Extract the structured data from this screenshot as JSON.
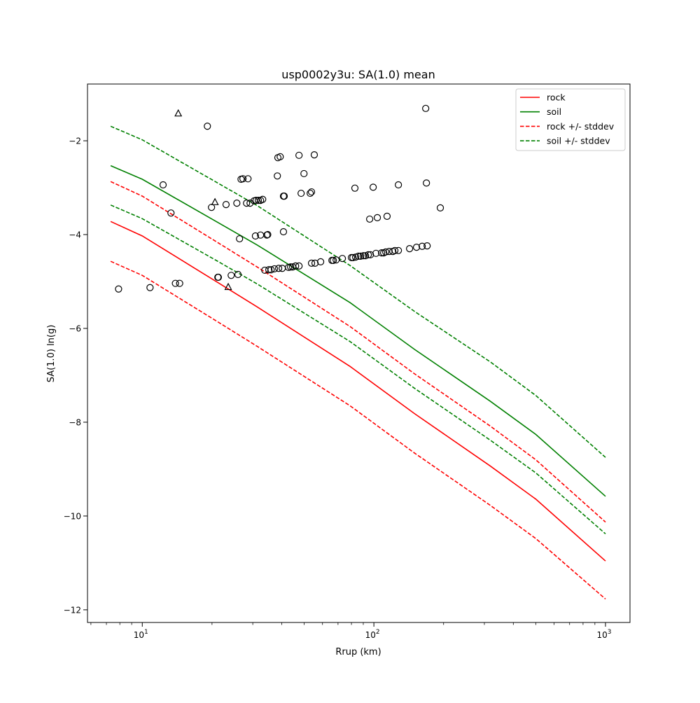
{
  "chart_data": {
    "type": "line",
    "title": "usp0002y3u: SA(1.0) mean",
    "xlabel": "Rrup (km)",
    "ylabel": "SA(1.0) ln(g)",
    "xscale": "log",
    "xlim": [
      5.8,
      1276
    ],
    "ylim": [
      -12.27,
      -0.79
    ],
    "grid": false,
    "legend_placement": "top-right",
    "xticks": [
      {
        "value": 10,
        "base": "10",
        "exp": "1"
      },
      {
        "value": 100,
        "base": "10",
        "exp": "2"
      },
      {
        "value": 1000,
        "base": "10",
        "exp": "3"
      }
    ],
    "yticks": [
      {
        "value": -2,
        "label": "−2"
      },
      {
        "value": -4,
        "label": "−4"
      },
      {
        "value": -6,
        "label": "−6"
      },
      {
        "value": -8,
        "label": "−8"
      },
      {
        "value": -10,
        "label": "−10"
      },
      {
        "value": -12,
        "label": "−12"
      }
    ],
    "x": [
      7.3,
      10,
      21,
      31.3,
      78.9,
      150,
      317.5,
      500,
      1000
    ],
    "series": [
      {
        "name": "rock",
        "color": "#ff0000",
        "style": "solid",
        "values": [
          -3.72,
          -4.03,
          -5.01,
          -5.54,
          -6.81,
          -7.82,
          -8.93,
          -9.64,
          -10.96
        ]
      },
      {
        "name": "soil",
        "color": "#008000",
        "style": "solid",
        "values": [
          -2.53,
          -2.82,
          -3.73,
          -4.22,
          -5.45,
          -6.45,
          -7.55,
          -8.26,
          -9.58
        ]
      },
      {
        "name": "rock +/- stddev",
        "color": "#ff0000",
        "style": "dashed",
        "values": [
          -2.87,
          -3.18,
          -4.16,
          -4.69,
          -5.96,
          -6.97,
          -8.08,
          -8.8,
          -10.13
        ],
        "values_lower": [
          -4.57,
          -4.87,
          -5.85,
          -6.38,
          -7.65,
          -8.66,
          -9.77,
          -10.48,
          -11.77
        ]
      },
      {
        "name": "soil +/- stddev",
        "color": "#008000",
        "style": "dashed",
        "values": [
          -1.69,
          -1.98,
          -2.89,
          -3.38,
          -4.66,
          -5.64,
          -6.71,
          -7.43,
          -8.75
        ],
        "values_lower": [
          -3.37,
          -3.66,
          -4.56,
          -5.05,
          -6.28,
          -7.28,
          -8.38,
          -9.08,
          -10.38
        ]
      }
    ],
    "observations_circle": [
      [
        7.9,
        -5.16
      ],
      [
        10.8,
        -5.13
      ],
      [
        12.3,
        -2.94
      ],
      [
        13.3,
        -3.54
      ],
      [
        13.9,
        -5.04
      ],
      [
        14.5,
        -5.04
      ],
      [
        19.1,
        -1.69
      ],
      [
        19.9,
        -3.42
      ],
      [
        21.2,
        -4.91
      ],
      [
        21.3,
        -4.91
      ],
      [
        23.0,
        -3.36
      ],
      [
        24.2,
        -4.87
      ],
      [
        25.6,
        -3.33
      ],
      [
        26.3,
        -4.09
      ],
      [
        25.9,
        -4.85
      ],
      [
        26.7,
        -2.82
      ],
      [
        27.2,
        -2.81
      ],
      [
        28.6,
        -2.81
      ],
      [
        28.2,
        -3.33
      ],
      [
        29.2,
        -3.33
      ],
      [
        30.4,
        -3.28
      ],
      [
        31.0,
        -3.27
      ],
      [
        31.7,
        -3.27
      ],
      [
        32.4,
        -3.27
      ],
      [
        33.1,
        -3.25
      ],
      [
        30.8,
        -4.03
      ],
      [
        32.4,
        -4.01
      ],
      [
        34.5,
        -4.01
      ],
      [
        34.8,
        -4.0
      ],
      [
        33.8,
        -4.76
      ],
      [
        35.2,
        -4.75
      ],
      [
        36.0,
        -4.75
      ],
      [
        37.2,
        -4.73
      ],
      [
        38.8,
        -4.72
      ],
      [
        40.2,
        -4.72
      ],
      [
        40.7,
        -3.94
      ],
      [
        38.5,
        -2.36
      ],
      [
        39.4,
        -2.34
      ],
      [
        38.3,
        -2.75
      ],
      [
        40.7,
        -3.18
      ],
      [
        41.0,
        -3.18
      ],
      [
        42.8,
        -4.7
      ],
      [
        43.7,
        -4.69
      ],
      [
        44.6,
        -4.69
      ],
      [
        45.9,
        -4.67
      ],
      [
        47.5,
        -4.67
      ],
      [
        48.5,
        -3.12
      ],
      [
        47.5,
        -2.31
      ],
      [
        49.9,
        -2.7
      ],
      [
        53.1,
        -3.12
      ],
      [
        53.8,
        -3.09
      ],
      [
        55.3,
        -2.3
      ],
      [
        53.8,
        -4.61
      ],
      [
        55.7,
        -4.61
      ],
      [
        58.9,
        -4.58
      ],
      [
        65.9,
        -4.55
      ],
      [
        66.8,
        -4.55
      ],
      [
        68.7,
        -4.54
      ],
      [
        73.1,
        -4.51
      ],
      [
        80.0,
        -4.49
      ],
      [
        81.2,
        -4.49
      ],
      [
        83.4,
        -4.48
      ],
      [
        85.8,
        -4.46
      ],
      [
        87.6,
        -4.46
      ],
      [
        90.1,
        -4.45
      ],
      [
        92.0,
        -4.45
      ],
      [
        94.6,
        -4.43
      ],
      [
        96.6,
        -4.43
      ],
      [
        102.1,
        -4.4
      ],
      [
        108.0,
        -4.39
      ],
      [
        110.2,
        -4.39
      ],
      [
        112.5,
        -4.37
      ],
      [
        116.4,
        -4.36
      ],
      [
        120.7,
        -4.36
      ],
      [
        123.2,
        -4.34
      ],
      [
        127.6,
        -4.34
      ],
      [
        142.6,
        -4.3
      ],
      [
        152.8,
        -4.27
      ],
      [
        161.6,
        -4.25
      ],
      [
        169.8,
        -4.24
      ],
      [
        82.8,
        -3.01
      ],
      [
        99.3,
        -2.99
      ],
      [
        127.6,
        -2.94
      ],
      [
        168.6,
        -2.9
      ],
      [
        95.9,
        -3.67
      ],
      [
        103.5,
        -3.64
      ],
      [
        114.0,
        -3.61
      ],
      [
        193.6,
        -3.43
      ],
      [
        167.4,
        -1.31
      ]
    ],
    "observations_triangle": [
      [
        14.3,
        -1.42
      ],
      [
        20.6,
        -3.31
      ],
      [
        23.5,
        -5.12
      ]
    ]
  }
}
